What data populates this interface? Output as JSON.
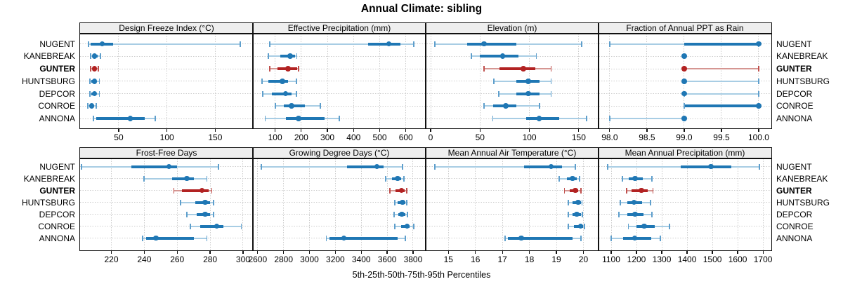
{
  "title": "Annual Climate: sibling",
  "caption": "5th-25th-50th-75th-95th Percentiles",
  "sites": [
    "NUGENT",
    "KANEBREAK",
    "GUNTER",
    "HUNTSBURG",
    "DEPCOR",
    "CONROE",
    "ANNONA"
  ],
  "highlight_site": "GUNTER",
  "colors": {
    "blue_main": "#1f77b4",
    "blue_light": "#a8cde4",
    "blue_cap": "#5f9fcc",
    "red_main": "#b22222",
    "red_light": "#d59692",
    "red_cap": "#c0504d",
    "grid": "#cccccc",
    "strip_bg": "#eeeeee",
    "border": "#111111"
  },
  "chart_data": {
    "type": "scatter",
    "subtype": "trellis-percentile-dot-whisker",
    "title": "Annual Climate: sibling",
    "caption": "5th-25th-50th-75th-95th Percentiles",
    "grid": true,
    "legend_position": "none",
    "categories": [
      "NUGENT",
      "KANEBREAK",
      "GUNTER",
      "HUNTSBURG",
      "DEPCOR",
      "CONROE",
      "ANNONA"
    ],
    "percentile_keys": [
      "p5",
      "p25",
      "p50",
      "p75",
      "p95"
    ],
    "panels": [
      {
        "label": "Design Freeze Index (°C)",
        "row": 0,
        "col": 0,
        "xlim": [
          10,
          189
        ],
        "ticks": [
          50,
          100,
          150
        ],
        "tick_labels": [
          "50",
          "100",
          "150"
        ],
        "values": [
          [
            19,
            21,
            33,
            44,
            176
          ],
          [
            21,
            23,
            25,
            28,
            31
          ],
          [
            21,
            23,
            25,
            27,
            29
          ],
          [
            20,
            22,
            25,
            26,
            30
          ],
          [
            20,
            22,
            25,
            27,
            30
          ],
          [
            18,
            20,
            22,
            24,
            27
          ],
          [
            24,
            27,
            62,
            77,
            88
          ]
        ]
      },
      {
        "label": "Effective Precipitation (mm)",
        "row": 0,
        "col": 1,
        "xlim": [
          15,
          676
        ],
        "ticks": [
          100,
          200,
          300,
          400,
          500,
          600
        ],
        "tick_labels": [
          "100",
          "200",
          "300",
          "400",
          "500",
          "600"
        ],
        "values": [
          [
            80,
            455,
            535,
            580,
            630
          ],
          [
            75,
            120,
            157,
            175,
            183
          ],
          [
            80,
            108,
            150,
            183,
            190
          ],
          [
            50,
            75,
            128,
            150,
            182
          ],
          [
            53,
            87,
            140,
            163,
            182
          ],
          [
            100,
            132,
            163,
            213,
            274
          ],
          [
            62,
            140,
            190,
            290,
            346
          ]
        ]
      },
      {
        "label": "Elevation (m)",
        "row": 0,
        "col": 2,
        "xlim": [
          -5,
          170
        ],
        "ticks": [
          0,
          50,
          100,
          150
        ],
        "tick_labels": [
          "0",
          "50",
          "100",
          "150"
        ],
        "values": [
          [
            4,
            37,
            54,
            87,
            153
          ],
          [
            41,
            50,
            73,
            89,
            107
          ],
          [
            54,
            70,
            94,
            106,
            122
          ],
          [
            64,
            87,
            99,
            110,
            122
          ],
          [
            69,
            87,
            99,
            110,
            122
          ],
          [
            54,
            63,
            76,
            87,
            110
          ],
          [
            63,
            97,
            110,
            130,
            158
          ]
        ]
      },
      {
        "label": "Fraction of Annual PPT as Rain",
        "row": 0,
        "col": 3,
        "xlim": [
          97.85,
          100.17
        ],
        "ticks": [
          98.0,
          98.5,
          99.0,
          99.5,
          100.0
        ],
        "tick_labels": [
          "98.0",
          "98.5",
          "99.0",
          "99.5",
          "100.0"
        ],
        "values": [
          [
            98,
            99,
            100,
            100,
            100
          ],
          [
            99,
            99,
            99,
            99,
            99
          ],
          [
            99,
            99,
            99,
            99,
            100
          ],
          [
            99,
            99,
            99,
            99,
            100
          ],
          [
            99,
            99,
            99,
            99,
            100
          ],
          [
            99,
            99,
            100,
            100,
            100
          ],
          [
            98,
            99,
            99,
            99,
            99
          ]
        ]
      },
      {
        "label": "Frost-Free Days",
        "row": 1,
        "col": 0,
        "xlim": [
          201,
          306
        ],
        "ticks": [
          220,
          240,
          260,
          280,
          300
        ],
        "tick_labels": [
          "220",
          "240",
          "260",
          "280",
          "300"
        ],
        "values": [
          [
            202,
            232,
            255,
            260,
            285
          ],
          [
            240,
            257,
            266,
            270,
            278
          ],
          [
            258,
            263,
            275,
            279,
            281
          ],
          [
            262,
            271,
            277,
            280,
            282
          ],
          [
            266,
            272,
            277,
            280,
            282
          ],
          [
            268,
            274,
            284,
            288,
            299
          ],
          [
            239,
            241,
            247,
            270,
            278
          ]
        ]
      },
      {
        "label": "Growing Degree Days (°C)",
        "row": 1,
        "col": 1,
        "xlim": [
          2563,
          3898
        ],
        "ticks": [
          2600,
          2800,
          3000,
          3200,
          3400,
          3600,
          3800
        ],
        "tick_labels": [
          "2600",
          "2800",
          "3000",
          "3200",
          "3400",
          "3600",
          "3800"
        ],
        "values": [
          [
            2630,
            3290,
            3520,
            3575,
            3720
          ],
          [
            3590,
            3640,
            3680,
            3710,
            3730
          ],
          [
            3620,
            3665,
            3710,
            3735,
            3750
          ],
          [
            3660,
            3680,
            3720,
            3740,
            3750
          ],
          [
            3655,
            3685,
            3715,
            3740,
            3755
          ],
          [
            3660,
            3710,
            3755,
            3775,
            3805
          ],
          [
            3130,
            3155,
            3265,
            3680,
            3740
          ]
        ]
      },
      {
        "label": "Mean Annual Air Temperature (°C)",
        "row": 1,
        "col": 2,
        "xlim": [
          14.16,
          20.56
        ],
        "ticks": [
          15,
          16,
          17,
          18,
          19,
          20
        ],
        "tick_labels": [
          "15",
          "16",
          "17",
          "18",
          "19",
          "20"
        ],
        "values": [
          [
            14.5,
            17.8,
            18.8,
            19.2,
            19.7
          ],
          [
            19.1,
            19.4,
            19.6,
            19.75,
            19.85
          ],
          [
            19.3,
            19.5,
            19.7,
            19.8,
            19.9
          ],
          [
            19.45,
            19.6,
            19.8,
            19.9,
            19.95
          ],
          [
            19.45,
            19.6,
            19.75,
            19.9,
            19.97
          ],
          [
            19.45,
            19.65,
            19.9,
            20.0,
            20.05
          ],
          [
            17.1,
            17.2,
            17.7,
            19.6,
            19.9
          ]
        ]
      },
      {
        "label": "Mean Annual Precipitation (mm)",
        "row": 1,
        "col": 3,
        "xlim": [
          1050,
          1733
        ],
        "ticks": [
          1100,
          1200,
          1300,
          1400,
          1500,
          1600,
          1700
        ],
        "tick_labels": [
          "1100",
          "1200",
          "1300",
          "1400",
          "1500",
          "1600",
          "1700"
        ],
        "values": [
          [
            1085,
            1375,
            1495,
            1575,
            1685
          ],
          [
            1145,
            1170,
            1195,
            1225,
            1260
          ],
          [
            1160,
            1180,
            1220,
            1245,
            1265
          ],
          [
            1135,
            1165,
            1190,
            1222,
            1255
          ],
          [
            1130,
            1165,
            1195,
            1228,
            1262
          ],
          [
            1168,
            1200,
            1230,
            1273,
            1330
          ],
          [
            1100,
            1147,
            1193,
            1257,
            1294
          ]
        ]
      }
    ]
  }
}
